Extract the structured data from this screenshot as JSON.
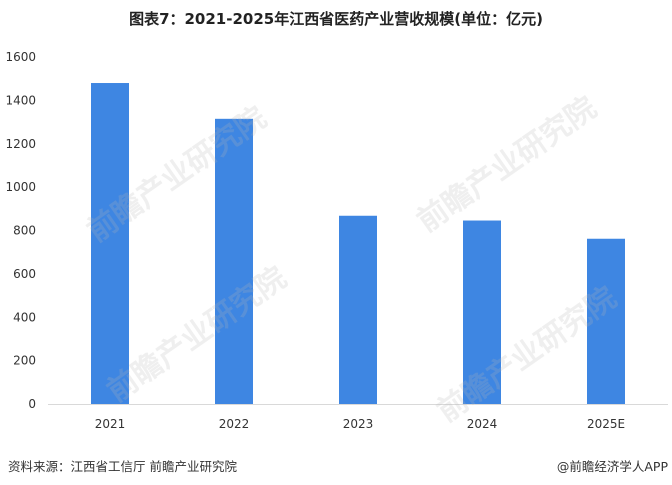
{
  "title": "图表7：2021-2025年江西省医药产业营收规模(单位：亿元)",
  "source": "资料来源：江西省工信厅 前瞻产业研究院",
  "brand": "@前瞻经济学人APP",
  "watermark": "前瞻产业研究院",
  "colors": {
    "bar": "#3e86e2",
    "axis": "#d9d9d9",
    "tick_text": "#333333"
  },
  "chart_data": {
    "type": "bar",
    "title": "图表7：2021-2025年江西省医药产业营收规模(单位：亿元)",
    "xlabel": "",
    "ylabel": "",
    "categories": [
      "2021",
      "2022",
      "2023",
      "2024",
      "2025E"
    ],
    "values": [
      1480,
      1315,
      868,
      846,
      762
    ],
    "ylim": [
      0,
      1600
    ],
    "yticks": [
      0,
      200,
      400,
      600,
      800,
      1000,
      1200,
      1400,
      1600
    ],
    "grid": false,
    "legend": "none"
  }
}
